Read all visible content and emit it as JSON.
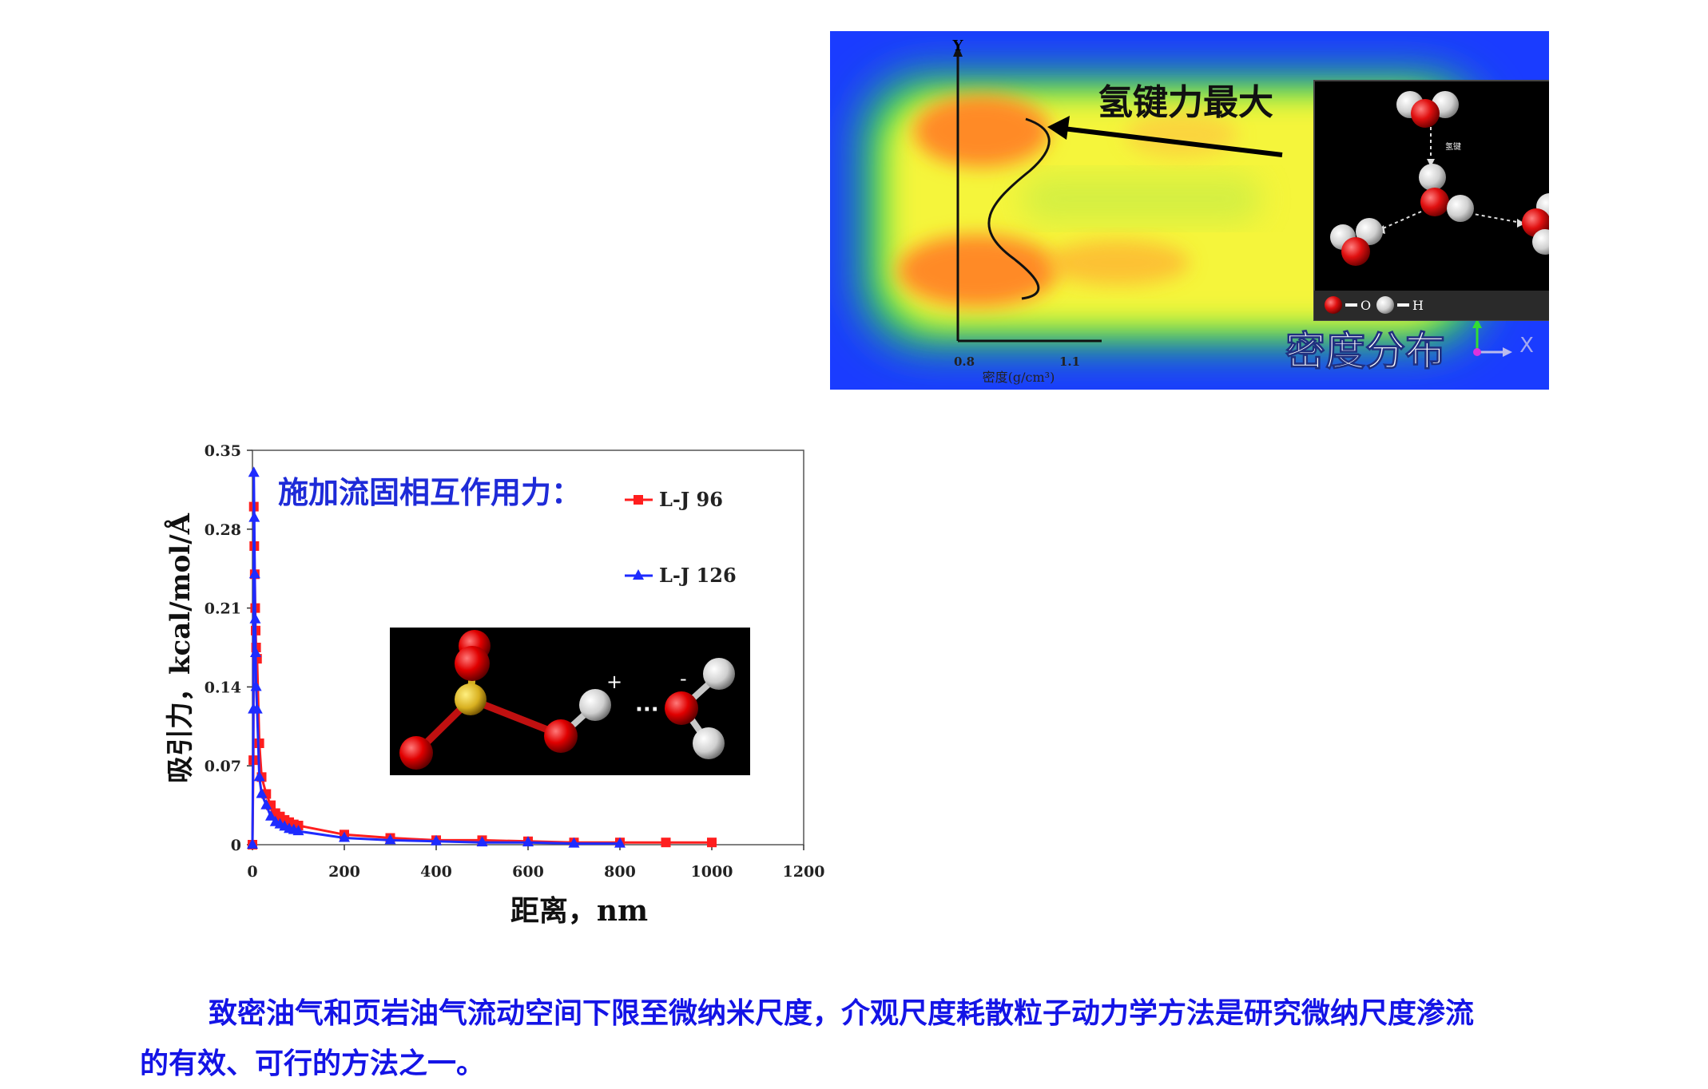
{
  "density_figure": {
    "y_axis_letter": "Y",
    "x_tick_min": "0.8",
    "x_tick_max": "1.1",
    "x_axis_label": "密度(g/cm³)",
    "annotation": "氢键力最大",
    "title": "密度分布",
    "orientation_x": "X",
    "inset": {
      "bond_label": "氢键",
      "legend_o": "O",
      "legend_h": "H"
    },
    "colors": {
      "background": "#1a3cff",
      "low": "#34e04a",
      "mid": "#f5f53a",
      "high": "#ff8a25"
    }
  },
  "chart_data": {
    "type": "line",
    "title": "",
    "xlabel": "距离，nm",
    "ylabel": "吸引力，kcal/mol/Å",
    "xlim": [
      0,
      1200
    ],
    "ylim": [
      0,
      0.35
    ],
    "xticks": [
      "0",
      "200",
      "400",
      "600",
      "800",
      "1000",
      "1200"
    ],
    "yticks": [
      "0",
      "0.07",
      "0.14",
      "0.21",
      "0.28",
      "0.35"
    ],
    "grid": false,
    "legend_title": "施加流固相互作用力：",
    "legend_placement": "top-right",
    "series": [
      {
        "name": "L-J 96",
        "color": "#ff1e1e",
        "marker": "square",
        "x": [
          0,
          2,
          3,
          4,
          5,
          6,
          7,
          8,
          10,
          15,
          20,
          30,
          40,
          50,
          60,
          70,
          80,
          90,
          100,
          200,
          300,
          400,
          500,
          600,
          700,
          800,
          900,
          1000
        ],
        "y": [
          0,
          0.075,
          0.3,
          0.265,
          0.24,
          0.21,
          0.19,
          0.175,
          0.165,
          0.09,
          0.06,
          0.045,
          0.035,
          0.028,
          0.025,
          0.022,
          0.02,
          0.018,
          0.017,
          0.009,
          0.006,
          0.004,
          0.004,
          0.003,
          0.002,
          0.002,
          0.002,
          0.002
        ]
      },
      {
        "name": "L-J 126",
        "color": "#1e2bff",
        "marker": "triangle",
        "x": [
          0,
          2,
          3,
          4,
          5,
          6,
          7,
          8,
          10,
          15,
          20,
          30,
          40,
          50,
          60,
          70,
          80,
          90,
          100,
          200,
          300,
          400,
          500,
          600,
          700,
          800
        ],
        "y": [
          0,
          0.12,
          0.33,
          0.29,
          0.24,
          0.2,
          0.17,
          0.14,
          0.12,
          0.06,
          0.045,
          0.035,
          0.025,
          0.02,
          0.018,
          0.016,
          0.014,
          0.013,
          0.012,
          0.006,
          0.004,
          0.003,
          0.002,
          0.002,
          0.001,
          0.001
        ]
      }
    ]
  },
  "molecule_inset": {
    "plus": "+",
    "minus": "-",
    "dots": "···"
  },
  "caption": {
    "line1": "致密油气和页岩油气流动空间下限至微纳米尺度，介观尺度耗散粒子动力学方法是研究微纳尺度渗流",
    "line2": "的有效、可行的方法之一。"
  }
}
